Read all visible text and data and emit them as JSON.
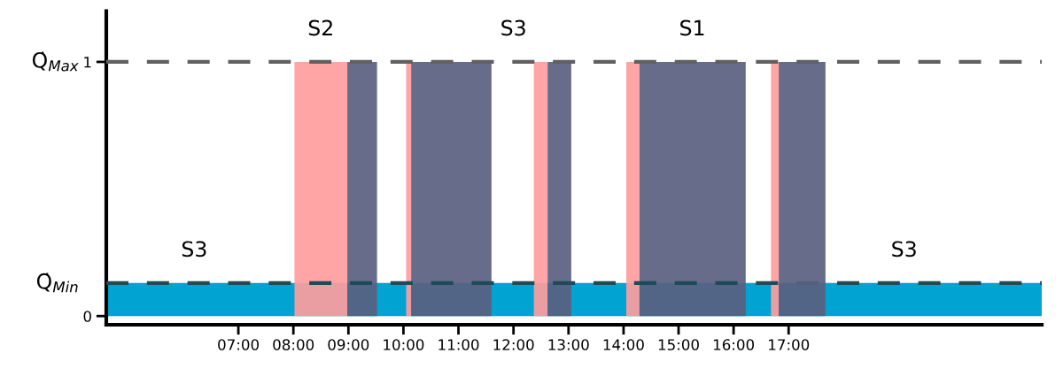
{
  "chart_data": {
    "type": "area",
    "xlim": [
      4.6,
      21.6
    ],
    "bands": [
      {
        "axis": "y",
        "from": 0,
        "to": 0.13,
        "color": "#00a3d1"
      }
    ],
    "ylim": [
      -0.034,
      1.2
    ],
    "xticks": [
      {
        "value": 7,
        "label": "07:00"
      },
      {
        "value": 8,
        "label": "08:00"
      },
      {
        "value": 9,
        "label": "09:00"
      },
      {
        "value": 10,
        "label": "10:00"
      },
      {
        "value": 11,
        "label": "11:00"
      },
      {
        "value": 12,
        "label": "12:00"
      },
      {
        "value": 13,
        "label": "13:00"
      },
      {
        "value": 14,
        "label": "14:00"
      },
      {
        "value": 15,
        "label": "15:00"
      },
      {
        "value": 16,
        "label": "16:00"
      },
      {
        "value": 17,
        "label": "17:00"
      }
    ],
    "yticks": [
      0,
      1
    ],
    "series": [
      {
        "color": "#ff9d9d",
        "x": [
          8.02,
          8.98
        ],
        "values": [
          1,
          1
        ]
      },
      {
        "color": "#5a5f80",
        "x": [
          8.98,
          9.52
        ],
        "values": [
          1,
          1
        ]
      },
      {
        "color": "#ff9d9d",
        "x": [
          10.05,
          10.14
        ],
        "values": [
          1,
          1
        ]
      },
      {
        "color": "#5a5f80",
        "x": [
          10.14,
          11.6
        ],
        "values": [
          1,
          1
        ]
      },
      {
        "color": "#ff9d9d",
        "x": [
          12.37,
          12.62
        ],
        "values": [
          1,
          1
        ]
      },
      {
        "color": "#5a5f80",
        "x": [
          12.62,
          13.05
        ],
        "values": [
          1,
          1
        ]
      },
      {
        "color": "#ff9d9d",
        "x": [
          14.05,
          14.29
        ],
        "values": [
          1,
          1
        ]
      },
      {
        "color": "#5a5f80",
        "x": [
          14.29,
          16.22
        ],
        "values": [
          1,
          1
        ]
      },
      {
        "color": "#ff9d9d",
        "x": [
          16.68,
          16.82
        ],
        "values": [
          1,
          1
        ]
      },
      {
        "color": "#5a5f80",
        "x": [
          16.82,
          17.67
        ],
        "values": [
          1,
          1
        ]
      }
    ],
    "ref_lines": [
      {
        "axis": "y",
        "value": 1,
        "label": "Q̇$_{Max}$",
        "color": "#606060",
        "line_style": "dashed"
      },
      {
        "axis": "y",
        "value": 0.13,
        "label": "Q̇$_{Min}$",
        "color": "#1f4a5a",
        "line_style": "dashed"
      }
    ],
    "annotations": [
      {
        "text": "S2",
        "x": 8.5,
        "y": 1
      },
      {
        "text": "S3",
        "x": 12.0,
        "y": 1
      },
      {
        "text": "S1",
        "x": 15.25,
        "y": 1
      },
      {
        "text": "S3",
        "x": 6.2,
        "y": 0.13
      },
      {
        "text": "S3",
        "x": 19.1,
        "y": 0.13
      }
    ]
  }
}
